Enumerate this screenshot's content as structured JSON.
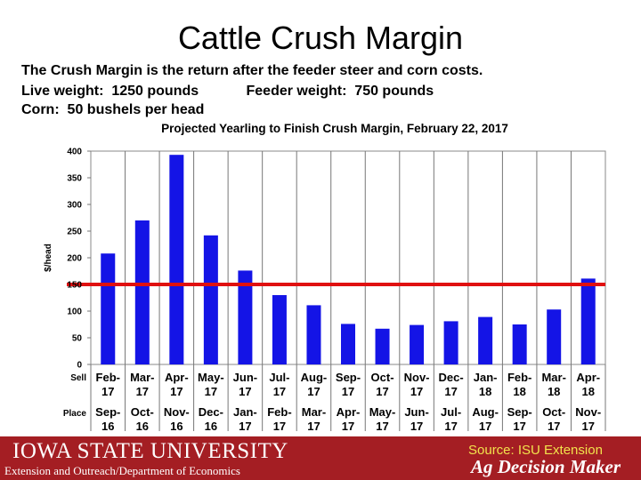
{
  "slide": {
    "title": "Cattle Crush Margin",
    "line1": "The Crush Margin is the return after the feeder steer and corn costs.",
    "line2": "Live weight:  1250 pounds            Feeder weight:  750 pounds",
    "line3": "Corn:  50 bushels per head"
  },
  "chart_data": {
    "type": "bar",
    "title": "Projected Yearling to Finish Crush Margin, February 22, 2017",
    "ylabel": "$/head",
    "ylim": [
      0,
      400
    ],
    "yticks": [
      0,
      50,
      100,
      150,
      200,
      250,
      300,
      350,
      400
    ],
    "row_labels": [
      "Sell",
      "Place"
    ],
    "sell": [
      "Feb-17",
      "Mar-17",
      "Apr-17",
      "May-17",
      "Jun-17",
      "Jul-17",
      "Aug-17",
      "Sep-17",
      "Oct-17",
      "Nov-17",
      "Dec-17",
      "Jan-18",
      "Feb-18",
      "Mar-18",
      "Apr-18"
    ],
    "place": [
      "Sep-16",
      "Oct-16",
      "Nov-16",
      "Dec-16",
      "Jan-17",
      "Feb-17",
      "Mar-17",
      "Apr-17",
      "May-17",
      "Jun-17",
      "Jul-17",
      "Aug-17",
      "Sep-17",
      "Oct-17",
      "Nov-17"
    ],
    "values": [
      208,
      270,
      393,
      242,
      176,
      130,
      111,
      76,
      67,
      74,
      81,
      89,
      75,
      103,
      161
    ],
    "reference_line": 150,
    "bar_color": "#1414e6",
    "line_color": "#e01010"
  },
  "footer": {
    "university": "IOWA STATE UNIVERSITY",
    "department": "Extension and Outreach/Department of Economics",
    "source": "Source: ISU Extension",
    "brand": "Ag Decision Maker",
    "color": "#a41e23"
  }
}
